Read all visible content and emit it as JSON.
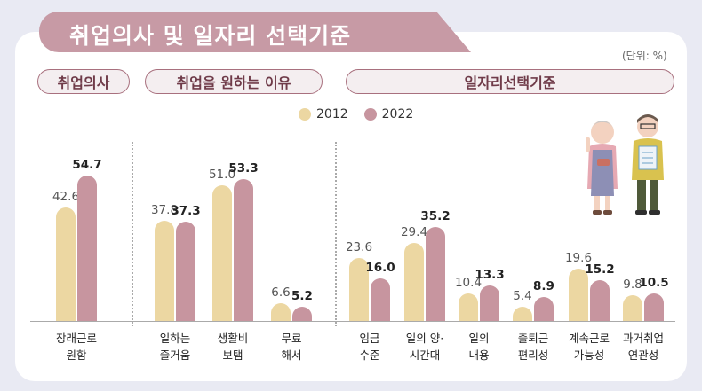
{
  "title": "취업의사 및 일자리 선택기준",
  "unit": "(단위: %)",
  "sections": [
    "취업의사",
    "취업을 원하는 이유",
    "일자리선택기준"
  ],
  "colors": {
    "y2012": "#ecd7a2",
    "y2022": "#c7959f",
    "accent": "#c79aa5"
  },
  "chart_data": {
    "type": "bar",
    "categories": [
      "장래근로\n원함",
      "일하는\n즐거움",
      "생활비\n보탬",
      "무료\n해서",
      "임금\n수준",
      "일의 양·\n시간대",
      "일의\n내용",
      "출퇴근\n편리성",
      "계속근로\n가능성",
      "과거취업\n연관성"
    ],
    "series": [
      {
        "name": "2012",
        "values": [
          42.6,
          37.8,
          51.0,
          6.6,
          23.6,
          29.4,
          10.4,
          5.4,
          19.6,
          9.8
        ]
      },
      {
        "name": "2022",
        "values": [
          54.7,
          37.3,
          53.3,
          5.2,
          16.0,
          35.2,
          13.3,
          8.9,
          15.2,
          10.5
        ]
      }
    ],
    "value_labels": {
      "2012": [
        "42.6",
        "37.8",
        "51.0",
        "6.6",
        "23.6",
        "29.4",
        "10.4",
        "5.4",
        "19.6",
        "9.8"
      ],
      "2022": [
        "54.7",
        "37.3",
        "53.3",
        "5.2",
        "16.0",
        "35.2",
        "13.3",
        "8.9",
        "15.2",
        "10.5"
      ]
    },
    "groups": [
      {
        "title": "취업의사",
        "categories": [
          0
        ]
      },
      {
        "title": "취업을 원하는 이유",
        "categories": [
          1,
          2,
          3
        ]
      },
      {
        "title": "일자리선택기준",
        "categories": [
          4,
          5,
          6,
          7,
          8,
          9
        ]
      }
    ],
    "legend": {
      "placement": "top-center",
      "entries": [
        "2012",
        "2022"
      ]
    },
    "grid": false,
    "ylim": [
      0,
      60
    ]
  }
}
